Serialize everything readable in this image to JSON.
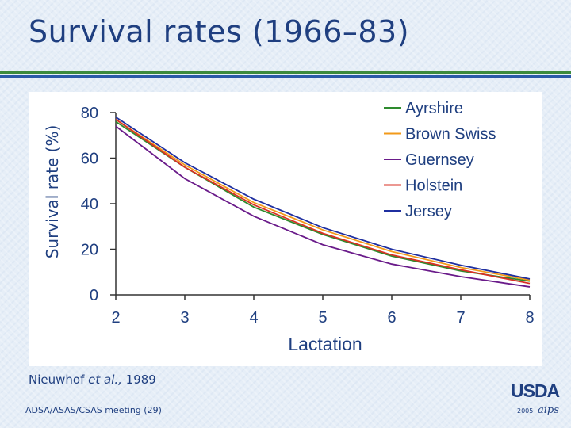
{
  "slide": {
    "title": "Survival rates (1966–83)",
    "source_author": "Nieuwhof ",
    "source_etal": "et al.,",
    "source_year": " 1989",
    "footer": "ADSA/ASAS/CSAS meeting (29)",
    "logo_text": "USDA",
    "logo_year": "2005",
    "logo_mark": "aips"
  },
  "colors": {
    "title": "#1f3f80",
    "Ayrshire": "#2e8b2e",
    "Brown Swiss": "#f29a1a",
    "Guernsey": "#6a1b8a",
    "Holstein": "#d93025",
    "Jersey": "#1f2fa0"
  },
  "chart_data": {
    "type": "line",
    "title": "",
    "xlabel": "Lactation",
    "ylabel": "Survival rate (%)",
    "x": [
      2,
      3,
      4,
      5,
      6,
      7,
      8
    ],
    "xlim": [
      2,
      8
    ],
    "ylim": [
      0,
      80
    ],
    "yticks": [
      0,
      20,
      40,
      60,
      80
    ],
    "xticks": [
      2,
      3,
      4,
      5,
      6,
      7,
      8
    ],
    "grid": false,
    "legend": "top-right",
    "series": [
      {
        "name": "Ayrshire",
        "values": [
          76,
          56,
          38.5,
          26.5,
          17,
          10.5,
          6
        ]
      },
      {
        "name": "Brown Swiss",
        "values": [
          77,
          57,
          40.5,
          28.5,
          19,
          12,
          6.5
        ]
      },
      {
        "name": "Guernsey",
        "values": [
          74,
          51,
          34.5,
          22,
          13.5,
          8,
          3.5
        ]
      },
      {
        "name": "Holstein",
        "values": [
          77,
          56,
          39.5,
          27,
          17.5,
          11,
          5
        ]
      },
      {
        "name": "Jersey",
        "values": [
          78,
          58,
          42,
          29.5,
          20,
          13,
          7
        ]
      }
    ]
  }
}
